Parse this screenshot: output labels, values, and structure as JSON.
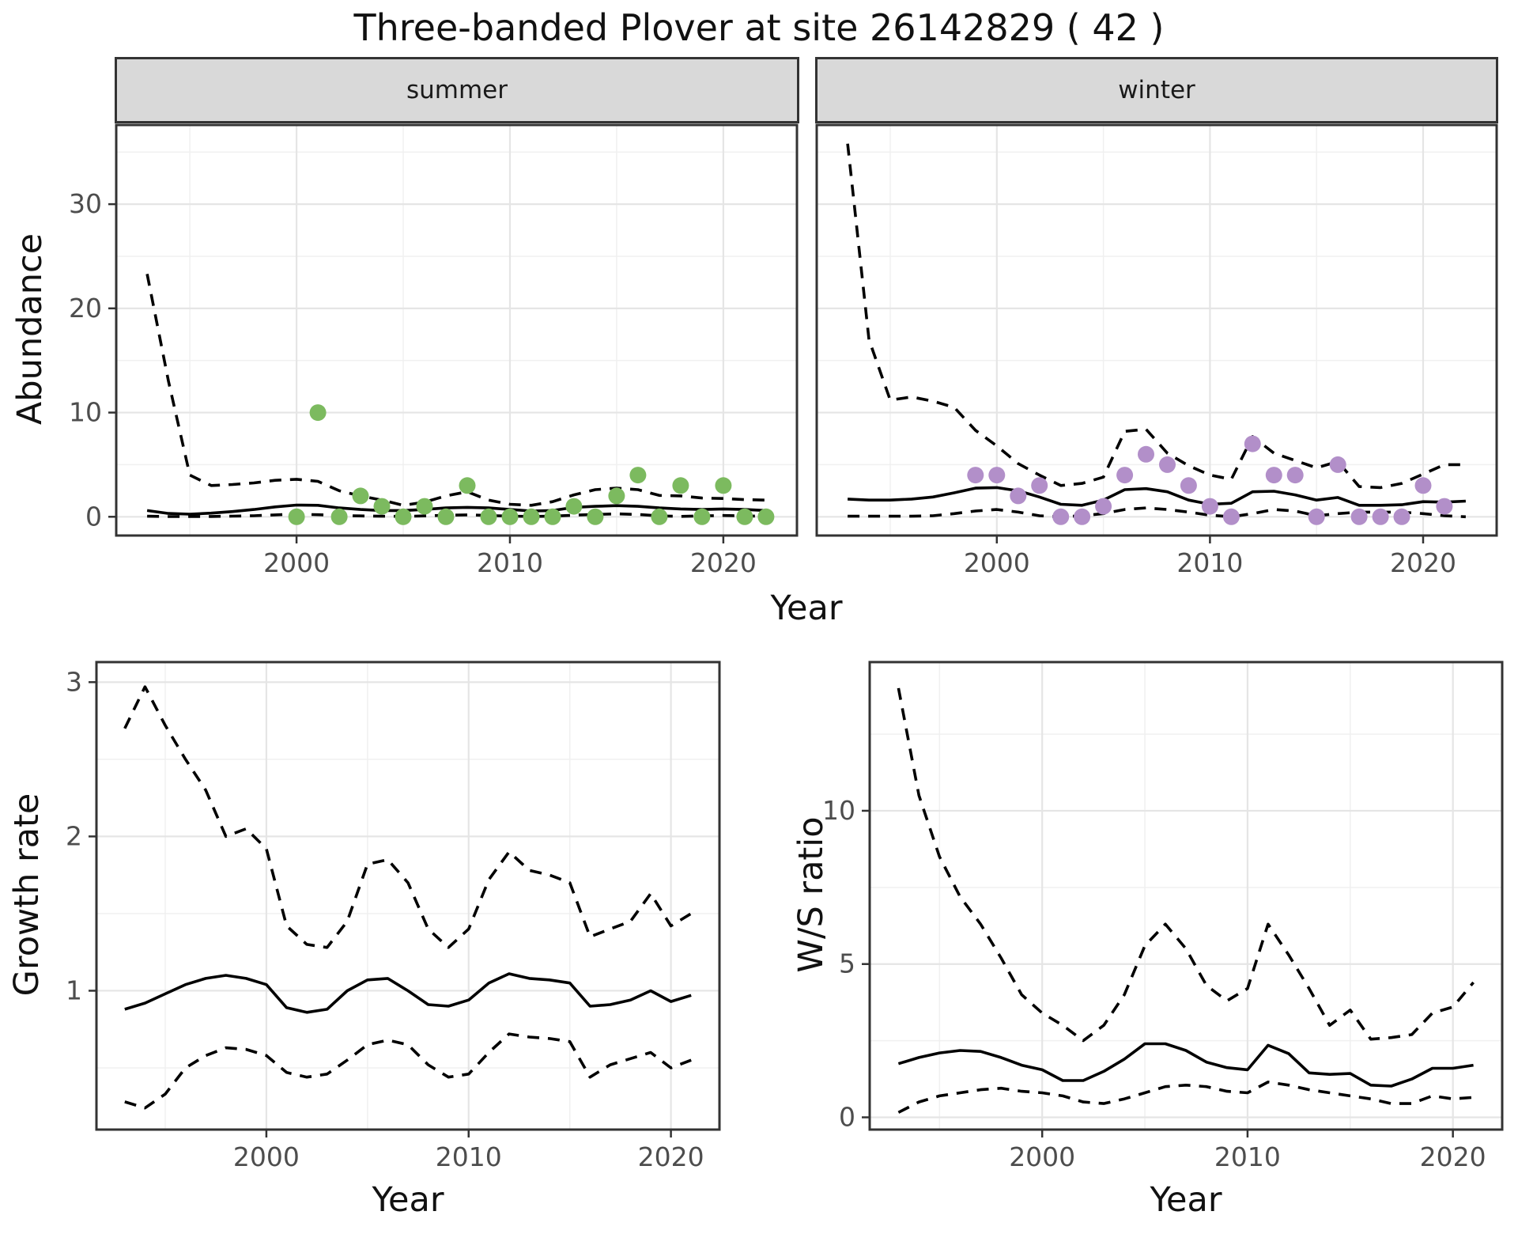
{
  "title": "Three-banded Plover at site 26142829 ( 42 )",
  "x_axis_title_top": "Year",
  "colors": {
    "summer_point": "#7cba5f",
    "winter_point": "#b28fc9",
    "line": "#000000",
    "strip_bg": "#d9d9d9",
    "panel_border": "#333333",
    "grid_major": "#e5e5e5",
    "grid_minor": "#f0f0f0",
    "tick_text": "#4d4d4d"
  },
  "chart_data": [
    {
      "id": "abundance_summer",
      "type": "line",
      "facet_label": "summer",
      "xlabel": "Year",
      "ylabel": "Abundance",
      "xlim": [
        1991.55,
        2023.45
      ],
      "ylim": [
        -1.8,
        37.6
      ],
      "x_ticks": [
        2000,
        2010,
        2020
      ],
      "x_minor": [
        1995,
        2005,
        2015
      ],
      "y_ticks": [
        0,
        10,
        20,
        30
      ],
      "y_minor": [
        5,
        15,
        25,
        35
      ],
      "grid": true,
      "legend": "none",
      "years": [
        1993,
        1994,
        1995,
        1996,
        1997,
        1998,
        1999,
        2000,
        2001,
        2002,
        2003,
        2004,
        2005,
        2006,
        2007,
        2008,
        2009,
        2010,
        2011,
        2012,
        2013,
        2014,
        2015,
        2016,
        2017,
        2018,
        2019,
        2020,
        2021,
        2022
      ],
      "series": [
        {
          "name": "upper_95ci",
          "style": "dashed",
          "values": [
            23.3,
            13,
            4.0,
            3.0,
            3.1,
            3.25,
            3.5,
            3.6,
            3.4,
            2.5,
            2.0,
            1.6,
            1.1,
            1.4,
            2.0,
            2.4,
            1.6,
            1.2,
            1.1,
            1.45,
            2.1,
            2.6,
            2.75,
            2.6,
            2.05,
            2.0,
            1.8,
            1.75,
            1.65,
            1.6
          ]
        },
        {
          "name": "model_fit",
          "style": "solid",
          "values": [
            0.6,
            0.32,
            0.25,
            0.35,
            0.5,
            0.7,
            0.95,
            1.12,
            1.1,
            0.85,
            0.7,
            0.6,
            0.6,
            0.7,
            0.85,
            0.9,
            0.85,
            0.7,
            0.55,
            0.6,
            0.9,
            1.0,
            1.07,
            1.0,
            0.85,
            0.75,
            0.7,
            0.75,
            0.7,
            0.6
          ]
        },
        {
          "name": "lower_95ci",
          "style": "dashed",
          "values": [
            0.05,
            0.02,
            0.02,
            0.03,
            0.06,
            0.1,
            0.18,
            0.25,
            0.2,
            0.12,
            0.08,
            0.05,
            0.04,
            0.08,
            0.14,
            0.18,
            0.12,
            0.06,
            0.03,
            0.06,
            0.15,
            0.22,
            0.28,
            0.22,
            0.08,
            0.04,
            0.08,
            0.12,
            0.08,
            0.05
          ]
        }
      ],
      "points": {
        "name": "observed_counts_summer",
        "color_key": "summer_point",
        "years": [
          2000,
          2001,
          2002,
          2003,
          2004,
          2005,
          2006,
          2007,
          2008,
          2009,
          2010,
          2011,
          2012,
          2013,
          2014,
          2015,
          2016,
          2017,
          2018,
          2019,
          2020,
          2021,
          2022
        ],
        "values": [
          0,
          10,
          0,
          2,
          1,
          0,
          1,
          0,
          3,
          0,
          0,
          0,
          0,
          1,
          0,
          2,
          4,
          0,
          3,
          0,
          3,
          0,
          0
        ]
      }
    },
    {
      "id": "abundance_winter",
      "type": "line",
      "facet_label": "winter",
      "xlabel": "Year",
      "ylabel": "Abundance",
      "xlim": [
        1991.55,
        2023.45
      ],
      "ylim": [
        -1.8,
        37.6
      ],
      "x_ticks": [
        2000,
        2010,
        2020
      ],
      "x_minor": [
        1995,
        2005,
        2015
      ],
      "y_ticks": [
        0,
        10,
        20,
        30
      ],
      "y_minor": [
        5,
        15,
        25,
        35
      ],
      "grid": true,
      "legend": "none",
      "years": [
        1993,
        1994,
        1995,
        1996,
        1997,
        1998,
        1999,
        2000,
        2001,
        2002,
        2003,
        2004,
        2005,
        2006,
        2007,
        2008,
        2009,
        2010,
        2011,
        2012,
        2013,
        2014,
        2015,
        2016,
        2017,
        2018,
        2019,
        2020,
        2021,
        2022
      ],
      "series": [
        {
          "name": "upper_95ci",
          "style": "dashed",
          "values": [
            35.8,
            17,
            11.2,
            11.5,
            11.1,
            10.5,
            8.3,
            6.8,
            5.1,
            4.0,
            3.0,
            3.2,
            3.8,
            8.2,
            8.4,
            6.1,
            4.9,
            4.0,
            3.6,
            7.7,
            6.1,
            5.4,
            4.7,
            5.3,
            2.9,
            2.8,
            3.2,
            4.1,
            5.0,
            5.0
          ]
        },
        {
          "name": "model_fit",
          "style": "solid",
          "values": [
            1.7,
            1.6,
            1.6,
            1.7,
            1.9,
            2.3,
            2.75,
            2.8,
            2.5,
            1.9,
            1.2,
            1.1,
            1.6,
            2.6,
            2.7,
            2.4,
            1.6,
            1.2,
            1.3,
            2.4,
            2.45,
            2.1,
            1.6,
            1.85,
            1.1,
            1.1,
            1.15,
            1.45,
            1.4,
            1.5
          ]
        },
        {
          "name": "lower_95ci",
          "style": "dashed",
          "values": [
            0.05,
            0.05,
            0.05,
            0.05,
            0.1,
            0.3,
            0.55,
            0.7,
            0.45,
            0.1,
            0.0,
            0.1,
            0.3,
            0.7,
            0.85,
            0.7,
            0.45,
            0.15,
            0.0,
            0.3,
            0.7,
            0.55,
            0.1,
            0.3,
            0.45,
            0.45,
            0.45,
            0.3,
            0.1,
            0.0
          ]
        }
      ],
      "points": {
        "name": "observed_counts_winter",
        "color_key": "winter_point",
        "years": [
          1999,
          2000,
          2001,
          2002,
          2003,
          2004,
          2005,
          2006,
          2007,
          2008,
          2009,
          2010,
          2011,
          2012,
          2013,
          2014,
          2015,
          2016,
          2017,
          2018,
          2019,
          2020,
          2021
        ],
        "values": [
          4,
          4,
          2,
          3,
          0,
          0,
          1,
          4,
          6,
          5,
          3,
          1,
          0,
          7,
          4,
          4,
          0,
          5,
          0,
          0,
          0,
          3,
          1
        ]
      }
    },
    {
      "id": "growth_rate",
      "type": "line",
      "facet_label": "",
      "xlabel": "Year",
      "ylabel": "Growth rate",
      "xlim": [
        1991.6,
        2022.4
      ],
      "ylim": [
        0.1,
        3.13
      ],
      "x_ticks": [
        2000,
        2010,
        2020
      ],
      "x_minor": [
        1995,
        2005,
        2015
      ],
      "y_ticks": [
        1,
        2,
        3
      ],
      "y_minor": [
        0.5,
        1.5,
        2.5
      ],
      "grid": true,
      "legend": "none",
      "years": [
        1993,
        1994,
        1995,
        1996,
        1997,
        1998,
        1999,
        2000,
        2001,
        2002,
        2003,
        2004,
        2005,
        2006,
        2007,
        2008,
        2009,
        2010,
        2011,
        2012,
        2013,
        2014,
        2015,
        2016,
        2017,
        2018,
        2019,
        2020,
        2021
      ],
      "series": [
        {
          "name": "upper_95ci",
          "style": "dashed",
          "values": [
            2.7,
            2.97,
            2.72,
            2.5,
            2.3,
            2.0,
            2.05,
            1.92,
            1.42,
            1.3,
            1.28,
            1.45,
            1.82,
            1.85,
            1.7,
            1.4,
            1.28,
            1.4,
            1.72,
            1.9,
            1.78,
            1.75,
            1.7,
            1.35,
            1.4,
            1.45,
            1.63,
            1.42,
            1.5
          ]
        },
        {
          "name": "model_fit",
          "style": "solid",
          "values": [
            0.88,
            0.92,
            0.98,
            1.04,
            1.08,
            1.1,
            1.08,
            1.04,
            0.89,
            0.86,
            0.88,
            1.0,
            1.07,
            1.08,
            1.0,
            0.91,
            0.9,
            0.94,
            1.05,
            1.11,
            1.08,
            1.07,
            1.05,
            0.9,
            0.91,
            0.94,
            1.0,
            0.93,
            0.97
          ]
        },
        {
          "name": "lower_95ci",
          "style": "dashed",
          "values": [
            0.28,
            0.24,
            0.33,
            0.5,
            0.58,
            0.63,
            0.62,
            0.58,
            0.47,
            0.44,
            0.46,
            0.55,
            0.65,
            0.68,
            0.65,
            0.52,
            0.44,
            0.46,
            0.6,
            0.72,
            0.7,
            0.69,
            0.67,
            0.44,
            0.52,
            0.56,
            0.6,
            0.5,
            0.55
          ]
        }
      ],
      "points": null
    },
    {
      "id": "ws_ratio",
      "type": "line",
      "facet_label": "",
      "xlabel": "Year",
      "ylabel": "W/S ratio",
      "xlim": [
        1991.6,
        2022.4
      ],
      "ylim": [
        -0.4,
        14.85
      ],
      "x_ticks": [
        2000,
        2010,
        2020
      ],
      "x_minor": [
        1995,
        2005,
        2015
      ],
      "y_ticks": [
        0,
        5,
        10
      ],
      "y_minor": [
        2.5,
        7.5,
        12.5
      ],
      "grid": true,
      "legend": "none",
      "years": [
        1993,
        1994,
        1995,
        1996,
        1997,
        1998,
        1999,
        2000,
        2001,
        2002,
        2003,
        2004,
        2005,
        2006,
        2007,
        2008,
        2009,
        2010,
        2011,
        2012,
        2013,
        2014,
        2015,
        2016,
        2017,
        2018,
        2019,
        2020,
        2021
      ],
      "series": [
        {
          "name": "upper_95ci",
          "style": "dashed",
          "values": [
            14.0,
            10.5,
            8.5,
            7.2,
            6.3,
            5.2,
            4.0,
            3.4,
            3.0,
            2.5,
            3.0,
            4.0,
            5.6,
            6.3,
            5.5,
            4.3,
            3.8,
            4.2,
            6.3,
            5.3,
            4.2,
            3.0,
            3.5,
            2.55,
            2.6,
            2.7,
            3.4,
            3.6,
            4.4
          ]
        },
        {
          "name": "model_fit",
          "style": "solid",
          "values": [
            1.75,
            1.95,
            2.1,
            2.18,
            2.15,
            1.95,
            1.7,
            1.55,
            1.2,
            1.2,
            1.5,
            1.9,
            2.4,
            2.4,
            2.18,
            1.8,
            1.62,
            1.55,
            2.35,
            2.08,
            1.45,
            1.4,
            1.43,
            1.05,
            1.02,
            1.25,
            1.6,
            1.6,
            1.7
          ]
        },
        {
          "name": "lower_95ci",
          "style": "dashed",
          "values": [
            0.16,
            0.5,
            0.7,
            0.8,
            0.9,
            0.95,
            0.85,
            0.8,
            0.7,
            0.5,
            0.45,
            0.6,
            0.8,
            1.0,
            1.05,
            1.0,
            0.85,
            0.8,
            1.15,
            1.05,
            0.9,
            0.8,
            0.7,
            0.6,
            0.45,
            0.45,
            0.7,
            0.6,
            0.65
          ]
        }
      ],
      "points": null
    }
  ]
}
